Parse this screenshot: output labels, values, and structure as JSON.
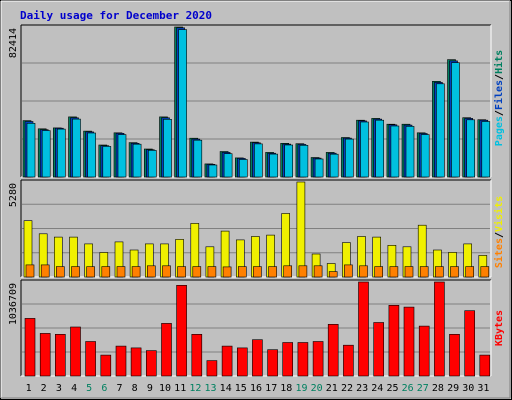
{
  "title": "Daily usage for December 2020",
  "colors": {
    "background": "#c0c0c0",
    "plot_bg": "#c0c0c0",
    "grid": "#808080",
    "pages": "#00c0e0",
    "files": "#0040c0",
    "hits": "#008060",
    "visits": "#f0f000",
    "sites": "#ff8000",
    "kbytes": "#ff0000",
    "weekend": "#008060",
    "weekday": "#000000"
  },
  "chart_data": [
    {
      "type": "bar",
      "name": "hits-files-pages",
      "categories": [
        "1",
        "2",
        "3",
        "4",
        "5",
        "6",
        "7",
        "8",
        "9",
        "10",
        "11",
        "12",
        "13",
        "14",
        "15",
        "16",
        "17",
        "18",
        "19",
        "20",
        "21",
        "22",
        "23",
        "24",
        "25",
        "26",
        "27",
        "28",
        "29",
        "30",
        "31"
      ],
      "ymax_label": "82414",
      "ymax": 82414,
      "side_labels": [
        "Pages",
        "Files",
        "Hits"
      ],
      "series": [
        {
          "name": "Hits",
          "values": [
            31000,
            26500,
            27000,
            33000,
            25200,
            17600,
            24300,
            18900,
            15400,
            33000,
            82414,
            21300,
            7200,
            14000,
            10500,
            19200,
            13500,
            18500,
            18300,
            10700,
            13500,
            21700,
            31200,
            32200,
            29000,
            29000,
            24300,
            52600,
            64500,
            32600,
            31500
          ]
        },
        {
          "name": "Files",
          "values": [
            30500,
            26000,
            26800,
            32500,
            24800,
            17200,
            24000,
            18500,
            15000,
            32500,
            82000,
            20800,
            7000,
            13500,
            10200,
            18800,
            13100,
            18100,
            17900,
            10400,
            13100,
            21400,
            30800,
            31800,
            28700,
            28500,
            23900,
            52000,
            63800,
            32200,
            31200
          ]
        },
        {
          "name": "Pages",
          "values": [
            29500,
            25500,
            26300,
            31800,
            24200,
            16800,
            23300,
            18000,
            14600,
            31700,
            81000,
            20200,
            6600,
            12800,
            9600,
            18200,
            12600,
            17600,
            17400,
            9900,
            12500,
            20800,
            30200,
            31200,
            28000,
            27800,
            23300,
            51200,
            62800,
            31400,
            30500
          ]
        }
      ]
    },
    {
      "type": "bar",
      "name": "visits-sites",
      "categories": [
        "1",
        "2",
        "3",
        "4",
        "5",
        "6",
        "7",
        "8",
        "9",
        "10",
        "11",
        "12",
        "13",
        "14",
        "15",
        "16",
        "17",
        "18",
        "19",
        "20",
        "21",
        "22",
        "23",
        "24",
        "25",
        "26",
        "27",
        "28",
        "29",
        "30",
        "31"
      ],
      "ymax_label": "5280",
      "ymax": 5280,
      "side_labels": [
        "Sites",
        "Visits"
      ],
      "series": [
        {
          "name": "Visits",
          "values": [
            3130,
            2400,
            2220,
            2220,
            1840,
            1360,
            1950,
            1500,
            1840,
            1840,
            2090,
            2980,
            1680,
            2550,
            2060,
            2250,
            2330,
            3530,
            5280,
            1280,
            750,
            1910,
            2250,
            2220,
            1760,
            1680,
            2880,
            1500,
            1370,
            1840,
            1200
          ]
        },
        {
          "name": "Sites",
          "values": [
            670,
            670,
            580,
            580,
            570,
            580,
            580,
            580,
            620,
            620,
            580,
            580,
            580,
            560,
            580,
            580,
            580,
            620,
            620,
            620,
            300,
            670,
            620,
            580,
            580,
            580,
            580,
            580,
            580,
            580,
            580
          ]
        }
      ]
    },
    {
      "type": "bar",
      "name": "kbytes",
      "categories": [
        "1",
        "2",
        "3",
        "4",
        "5",
        "6",
        "7",
        "8",
        "9",
        "10",
        "11",
        "12",
        "13",
        "14",
        "15",
        "16",
        "17",
        "18",
        "19",
        "20",
        "21",
        "22",
        "23",
        "24",
        "25",
        "26",
        "27",
        "28",
        "29",
        "30",
        "31"
      ],
      "ymax_label": "1036709",
      "ymax": 1036709,
      "side_labels": [
        "KBytes"
      ],
      "series": [
        {
          "name": "KBytes",
          "values": [
            635000,
            470000,
            460000,
            540000,
            380000,
            230000,
            330000,
            310000,
            280000,
            580000,
            1000000,
            460000,
            170000,
            330000,
            310000,
            400000,
            290000,
            370000,
            370000,
            380000,
            570000,
            340000,
            1036709,
            590000,
            780000,
            760000,
            550000,
            1040000,
            460000,
            720000,
            230000
          ]
        }
      ]
    }
  ],
  "weekend_days": [
    5,
    6,
    12,
    13,
    19,
    20,
    26,
    27
  ]
}
